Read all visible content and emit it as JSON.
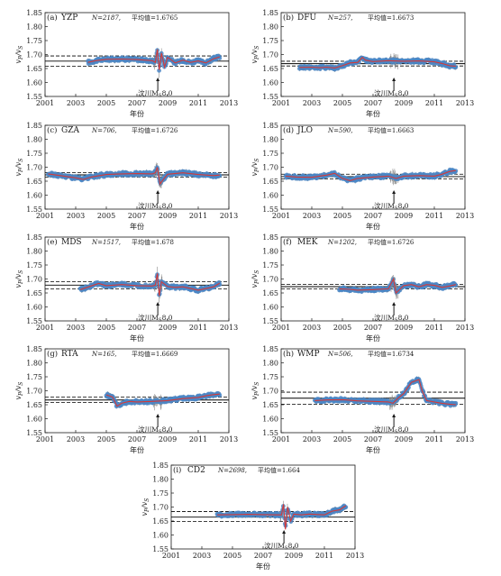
{
  "chart_data": [
    {
      "id": "a",
      "type": "scatter",
      "panel_label": "(a)",
      "station": "YZP",
      "n_text": "N=2187,",
      "mean_text": "平均值=1.6765",
      "mean": 1.6765,
      "band": [
        1.658,
        1.695
      ],
      "event_label": "汶川M",
      "series": [
        {
          "x": [
            2003.8,
            2004.3,
            2005,
            2006,
            2007,
            2008.0,
            2008.2,
            2008.33,
            2008.45,
            2008.6,
            2008.8,
            2009,
            2009.5,
            2010,
            2010.5,
            2011,
            2011.5,
            2012,
            2012.4
          ],
          "values": [
            1.672,
            1.678,
            1.683,
            1.684,
            1.682,
            1.678,
            1.672,
            1.718,
            1.645,
            1.705,
            1.655,
            1.69,
            1.67,
            1.68,
            1.672,
            1.677,
            1.67,
            1.685,
            1.692
          ]
        }
      ]
    },
    {
      "id": "b",
      "type": "scatter",
      "panel_label": "(b)",
      "station": "DFU",
      "n_text": "N=257,",
      "mean_text": "平均值=1.6673",
      "mean": 1.6673,
      "band": [
        1.659,
        1.676
      ],
      "event_label": "汶川M",
      "series": [
        {
          "x": [
            2002.2,
            2003,
            2003.5,
            2004,
            2004.5,
            2005,
            2005.5,
            2006,
            2006.3,
            2006.5,
            2007,
            2008,
            2009,
            2010,
            2011,
            2011.5,
            2012,
            2012.4
          ],
          "values": [
            1.654,
            1.655,
            1.653,
            1.655,
            1.652,
            1.66,
            1.67,
            1.672,
            1.69,
            1.68,
            1.675,
            1.678,
            1.676,
            1.677,
            1.674,
            1.668,
            1.66,
            1.658
          ]
        }
      ]
    },
    {
      "id": "c",
      "type": "scatter",
      "panel_label": "(c)",
      "station": "GZA",
      "n_text": "N=706,",
      "mean_text": "平均值=1.6726",
      "mean": 1.6726,
      "band": [
        1.665,
        1.681
      ],
      "event_label": "汶川M",
      "series": [
        {
          "x": [
            2001.2,
            2002,
            2003,
            2003.5,
            2004,
            2005,
            2006,
            2007,
            2008.0,
            2008.2,
            2008.33,
            2008.5,
            2008.7,
            2009,
            2010,
            2011,
            2012,
            2012.4
          ],
          "values": [
            1.676,
            1.67,
            1.662,
            1.656,
            1.665,
            1.674,
            1.676,
            1.677,
            1.676,
            1.68,
            1.7,
            1.64,
            1.655,
            1.675,
            1.68,
            1.674,
            1.67,
            1.672
          ]
        }
      ]
    },
    {
      "id": "d",
      "type": "scatter",
      "panel_label": "(d)",
      "station": "JLO",
      "n_text": "N=590,",
      "mean_text": "平均值=1.6663",
      "mean": 1.6663,
      "band": [
        1.658,
        1.675
      ],
      "event_label": "汶川M",
      "series": [
        {
          "x": [
            2001.3,
            2002,
            2003,
            2004,
            2004.5,
            2005,
            2005.5,
            2006,
            2007,
            2008,
            2008.5,
            2009,
            2010,
            2011,
            2011.5,
            2012,
            2012.4
          ],
          "values": [
            1.668,
            1.665,
            1.664,
            1.672,
            1.678,
            1.66,
            1.652,
            1.66,
            1.665,
            1.668,
            1.66,
            1.668,
            1.67,
            1.668,
            1.675,
            1.685,
            1.688
          ]
        }
      ]
    },
    {
      "id": "e",
      "type": "scatter",
      "panel_label": "(e)",
      "station": "MDS",
      "n_text": "N=1517,",
      "mean_text": "平均值=1.678",
      "mean": 1.678,
      "band": [
        1.665,
        1.69
      ],
      "event_label": "汶川M",
      "series": [
        {
          "x": [
            2003.3,
            2004,
            2004.5,
            2005,
            2006,
            2007,
            2008.0,
            2008.2,
            2008.33,
            2008.45,
            2008.6,
            2009,
            2009.5,
            2010,
            2011,
            2012,
            2012.4
          ],
          "values": [
            1.662,
            1.675,
            1.684,
            1.676,
            1.68,
            1.676,
            1.675,
            1.678,
            1.72,
            1.64,
            1.69,
            1.673,
            1.67,
            1.672,
            1.66,
            1.672,
            1.685
          ]
        }
      ]
    },
    {
      "id": "f",
      "type": "scatter",
      "panel_label": "(f)",
      "station": "MEK",
      "n_text": "N=1202,",
      "mean_text": "平均值=1.6726",
      "mean": 1.6726,
      "band": [
        1.664,
        1.681
      ],
      "event_label": "汶川M",
      "series": [
        {
          "x": [
            2004.8,
            2005.5,
            2006,
            2007,
            2008.0,
            2008.33,
            2008.5,
            2009,
            2009.5,
            2010,
            2010.5,
            2011,
            2011.5,
            2012,
            2012.4
          ],
          "values": [
            1.665,
            1.663,
            1.66,
            1.662,
            1.665,
            1.7,
            1.65,
            1.676,
            1.68,
            1.672,
            1.68,
            1.677,
            1.67,
            1.675,
            1.68
          ]
        }
      ]
    },
    {
      "id": "g",
      "type": "scatter",
      "panel_label": "(g)",
      "station": "RTA",
      "n_text": "N=165,",
      "mean_text": "平均值=1.6669",
      "mean": 1.6669,
      "band": [
        1.658,
        1.677
      ],
      "event_label": "汶川M",
      "series": [
        {
          "x": [
            2005.0,
            2005.4,
            2005.7,
            2006,
            2006.5,
            2007,
            2008,
            2009,
            2010,
            2011,
            2011.5,
            2012,
            2012.4
          ],
          "values": [
            1.685,
            1.678,
            1.645,
            1.655,
            1.662,
            1.66,
            1.662,
            1.665,
            1.672,
            1.676,
            1.682,
            1.686,
            1.688
          ]
        }
      ]
    },
    {
      "id": "h",
      "type": "scatter",
      "panel_label": "(h)",
      "station": "WMP",
      "n_text": "N=506,",
      "mean_text": "平均值=1.6734",
      "mean": 1.6734,
      "band": [
        1.652,
        1.695
      ],
      "event_label": "汶川M",
      "series": [
        {
          "x": [
            2003.2,
            2004,
            2005,
            2006,
            2007,
            2008.0,
            2008.3,
            2008.6,
            2009,
            2009.5,
            2010,
            2010.2,
            2010.5,
            2011,
            2011.5,
            2012,
            2012.4
          ],
          "values": [
            1.665,
            1.667,
            1.668,
            1.664,
            1.662,
            1.66,
            1.655,
            1.672,
            1.69,
            1.73,
            1.74,
            1.7,
            1.665,
            1.66,
            1.655,
            1.652,
            1.65
          ]
        }
      ]
    },
    {
      "id": "i",
      "type": "scatter",
      "panel_label": "(i)",
      "station": "CD2",
      "n_text": "N=2698,",
      "mean_text": "平均值=1.664",
      "mean": 1.664,
      "band": [
        1.648,
        1.684
      ],
      "event_label": "汶川M",
      "series": [
        {
          "x": [
            2004.0,
            2005,
            2006,
            2007,
            2008.0,
            2008.2,
            2008.33,
            2008.45,
            2008.6,
            2008.8,
            2009,
            2009.5,
            2010,
            2011,
            2011.5,
            2012,
            2012.4
          ],
          "values": [
            1.672,
            1.673,
            1.674,
            1.673,
            1.672,
            1.672,
            1.71,
            1.62,
            1.7,
            1.65,
            1.675,
            1.672,
            1.675,
            1.672,
            1.685,
            1.69,
            1.705
          ]
        }
      ]
    }
  ],
  "axes": {
    "x_ticks": [
      "2001",
      "2005",
      "2009",
      "2013"
    ],
    "x_ticks_minor": [
      "2003",
      "2007",
      "2011"
    ],
    "x_values": [
      2001,
      2003,
      2005,
      2007,
      2009,
      2011,
      2013
    ],
    "xlim": [
      2001,
      2013
    ],
    "y_ticks": [
      "1.55",
      "1.60",
      "1.65",
      "1.70",
      "1.75",
      "1.80",
      "1.85"
    ],
    "y_values": [
      1.55,
      1.6,
      1.65,
      1.7,
      1.75,
      1.8,
      1.85
    ],
    "ylim": [
      1.55,
      1.85
    ],
    "ylabel_main": "v",
    "ylabel_p": "P",
    "ylabel_slash": "/v",
    "ylabel_s": "S",
    "xlabel": "年份",
    "event_x": 2008.36,
    "event_sub": "S",
    "event_mag": "8.0"
  },
  "colors": {
    "points": "#4a86c5",
    "errorbars": "#8a8a8a",
    "smooth": "#d23a3a",
    "mean_line": "#000000",
    "axes": "#1a1a1a"
  }
}
